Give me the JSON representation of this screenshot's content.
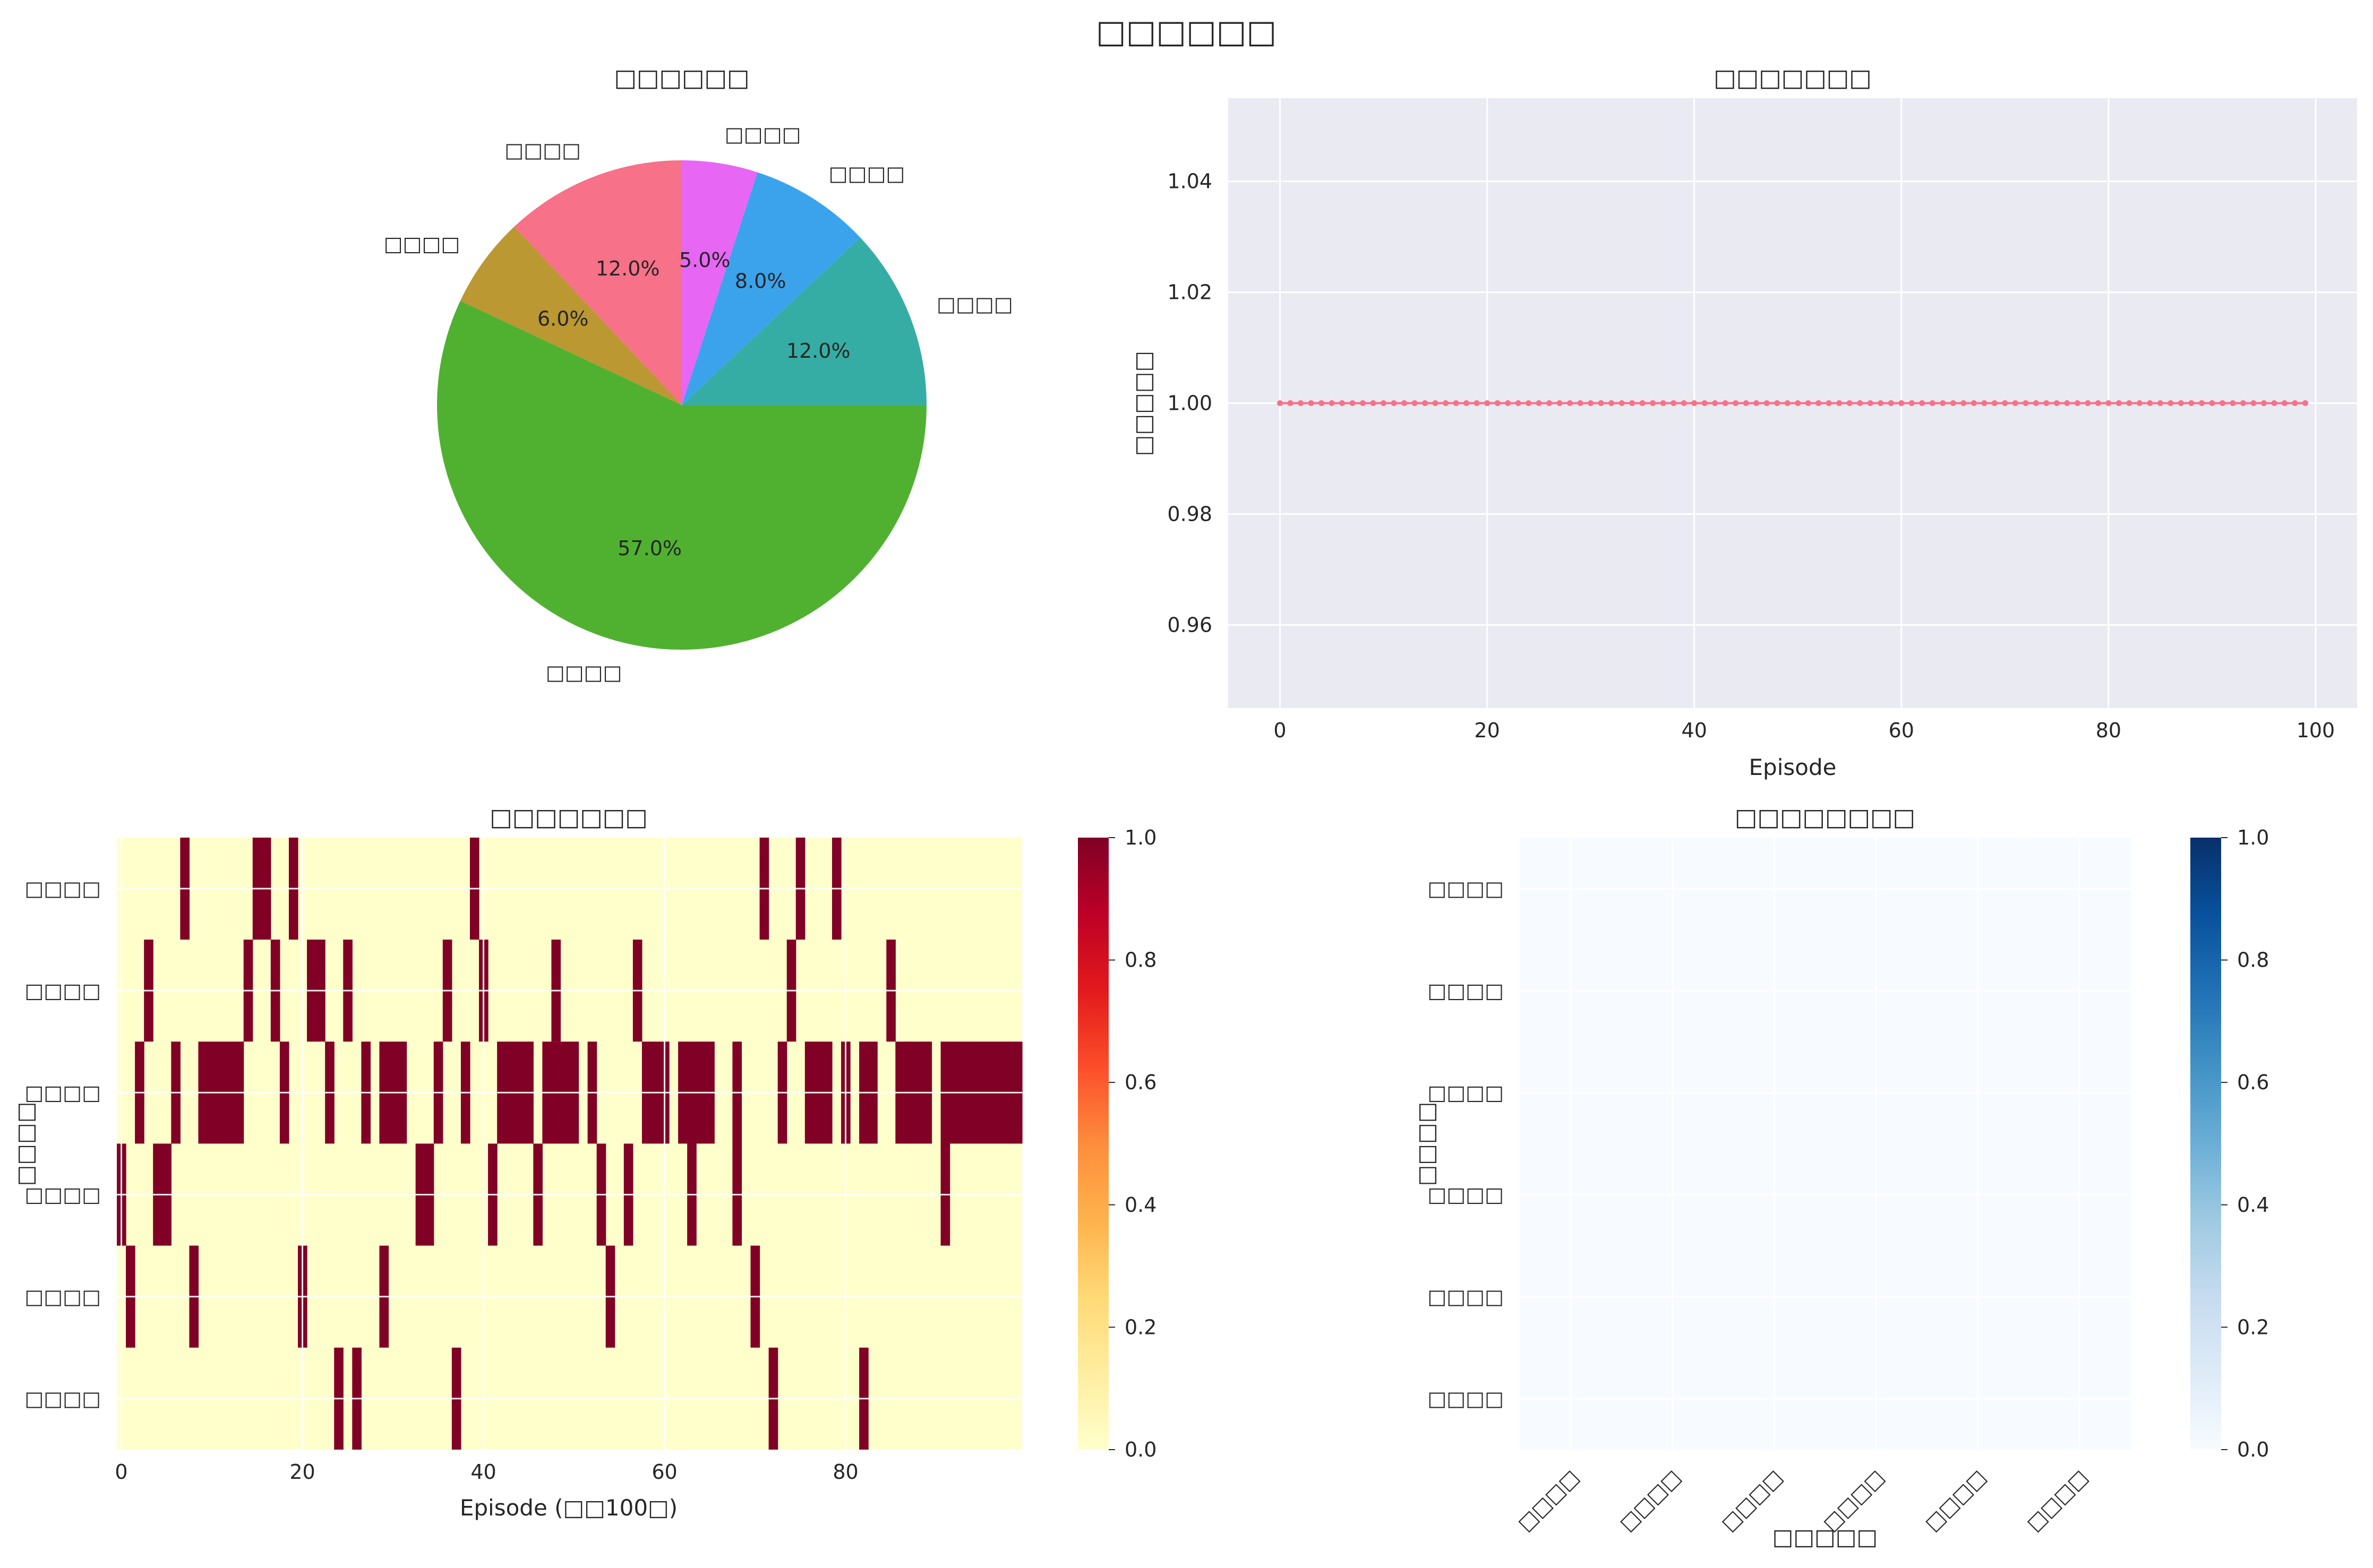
{
  "figure": {
    "suptitle": "□□□□□□"
  },
  "chart_data": [
    {
      "id": "pie",
      "type": "pie",
      "title": "□□□□□□",
      "slices": [
        {
          "label": "□□□□",
          "value": 12.0,
          "pct_label": "12.0%",
          "color": "#36ada4"
        },
        {
          "label": "□□□□",
          "value": 8.0,
          "pct_label": "8.0%",
          "color": "#3ba3ec"
        },
        {
          "label": "□□□□",
          "value": 5.0,
          "pct_label": "5.0%",
          "color": "#e866f4"
        },
        {
          "label": "□□□□",
          "value": 12.0,
          "pct_label": "12.0%",
          "color": "#f77189"
        },
        {
          "label": "□□□□",
          "value": 6.0,
          "pct_label": "6.0%",
          "color": "#bb9832"
        },
        {
          "label": "□□□□",
          "value": 57.0,
          "pct_label": "57.0%",
          "color": "#50b131"
        }
      ],
      "start": "0° (3 o'clock)",
      "direction": "counterclockwise"
    },
    {
      "id": "line",
      "type": "line",
      "title": "□□□□□□□",
      "xlabel": "Episode",
      "ylabel": "□□□□□",
      "xlim": [
        -5,
        104
      ],
      "ylim": [
        0.945,
        1.055
      ],
      "x_ticks": [
        0,
        20,
        40,
        60,
        80,
        100
      ],
      "y_ticks": [
        0.96,
        0.98,
        1.0,
        1.02,
        1.04
      ],
      "y_tick_labels": [
        "0.96",
        "0.98",
        "1.00",
        "1.02",
        "1.04"
      ],
      "series": [
        {
          "x_start": 0,
          "x_end": 99,
          "y_constant": 1.0,
          "marker": "dot",
          "color": "#f77189"
        }
      ],
      "grid": true,
      "background": "#eaeaf2"
    },
    {
      "id": "heatmap-actions",
      "type": "heatmap",
      "title": "□□□□□□□",
      "xlabel": "Episode (□□100□)",
      "ylabel": "□□□□",
      "x_ticks": [
        0,
        20,
        40,
        60,
        80
      ],
      "rows": [
        "□□□□",
        "□□□□",
        "□□□□",
        "□□□□",
        "□□□□",
        "□□□□"
      ],
      "n_cols": 100,
      "colormap": "YlOrRd",
      "colorbar_ticks": [
        "0.0",
        "0.2",
        "0.4",
        "0.6",
        "0.8",
        "1.0"
      ],
      "active_columns_by_row": [
        [
          7,
          15,
          16,
          19,
          39,
          71,
          75,
          79
        ],
        [
          3,
          14,
          17,
          21,
          22,
          25,
          36,
          40,
          48,
          57,
          74,
          85
        ],
        [
          2,
          6,
          9,
          10,
          11,
          12,
          13,
          18,
          23,
          27,
          29,
          30,
          31,
          35,
          38,
          42,
          43,
          44,
          45,
          47,
          48,
          49,
          50,
          52,
          58,
          59,
          60,
          62,
          63,
          64,
          65,
          68,
          73,
          76,
          77,
          78,
          80,
          82,
          83,
          86,
          87,
          88,
          89,
          91,
          92,
          93,
          94,
          95,
          96,
          97,
          98,
          99
        ],
        [
          0,
          4,
          5,
          33,
          34,
          41,
          46,
          53,
          56,
          63,
          68,
          91
        ],
        [
          1,
          8,
          20,
          29,
          54,
          70
        ],
        [
          24,
          26,
          37,
          72,
          82
        ]
      ]
    },
    {
      "id": "heatmap-transition",
      "type": "heatmap",
      "title": "□□□□□□□□",
      "xlabel": "□□□□□",
      "ylabel": "□□□□",
      "rows": [
        "□□□□",
        "□□□□",
        "□□□□",
        "□□□□",
        "□□□□",
        "□□□□"
      ],
      "cols": [
        "□□□□",
        "□□□□",
        "□□□□",
        "□□□□",
        "□□□□",
        "□□□□"
      ],
      "values": [
        [
          0,
          0,
          0,
          0,
          0,
          0
        ],
        [
          0,
          0,
          0,
          0,
          0,
          0
        ],
        [
          0,
          0,
          0,
          0,
          0,
          0
        ],
        [
          0,
          0,
          0,
          0,
          0,
          0
        ],
        [
          0,
          0,
          0,
          0,
          0,
          0
        ],
        [
          0,
          0,
          0,
          0,
          0,
          0
        ]
      ],
      "colormap": "Blues",
      "colorbar_ticks": [
        "0.0",
        "0.2",
        "0.4",
        "0.6",
        "0.8",
        "1.0"
      ]
    }
  ]
}
